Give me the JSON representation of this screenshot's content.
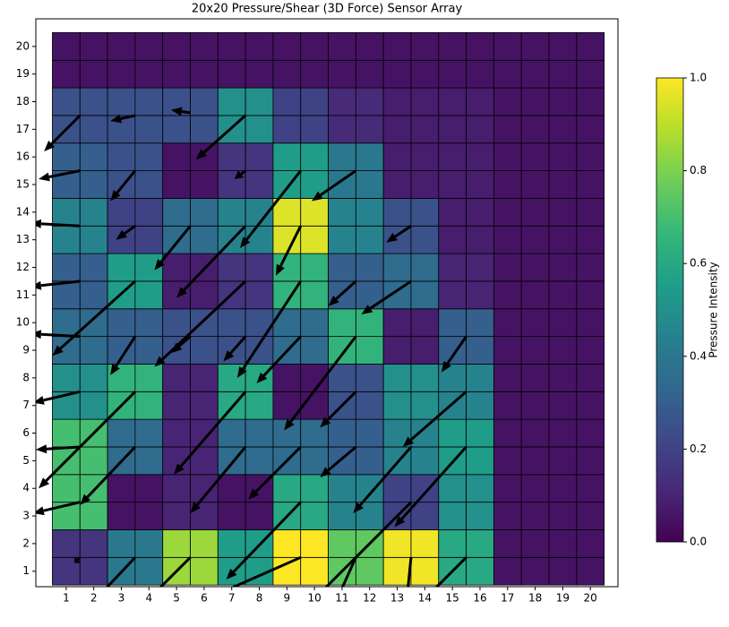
{
  "chart_data": {
    "type": "heatmap-quiver",
    "title": "20x20 Pressure/Shear (3D Force) Sensor Array",
    "colormap": "viridis",
    "xlim": [
      -0.1,
      21.0
    ],
    "ylim": [
      0.44,
      21.0
    ],
    "xticks": [
      1,
      2,
      3,
      4,
      5,
      6,
      7,
      8,
      9,
      10,
      11,
      12,
      13,
      14,
      15,
      16,
      17,
      18,
      19,
      20
    ],
    "yticks": [
      1,
      2,
      3,
      4,
      5,
      6,
      7,
      8,
      9,
      10,
      11,
      12,
      13,
      14,
      15,
      16,
      17,
      18,
      19,
      20
    ],
    "z": [
      [
        0.15,
        0.15,
        0.4,
        0.4,
        0.85,
        0.85,
        0.55,
        0.55,
        1.0,
        1.0,
        0.75,
        0.75,
        0.98,
        0.98,
        0.6,
        0.6,
        0.05,
        0.05,
        0.05,
        0.05
      ],
      [
        0.15,
        0.15,
        0.4,
        0.4,
        0.85,
        0.85,
        0.55,
        0.55,
        1.0,
        1.0,
        0.75,
        0.75,
        0.98,
        0.98,
        0.6,
        0.6,
        0.05,
        0.05,
        0.05,
        0.05
      ],
      [
        0.7,
        0.7,
        0.05,
        0.05,
        0.1,
        0.1,
        0.05,
        0.05,
        0.6,
        0.6,
        0.45,
        0.45,
        0.2,
        0.2,
        0.5,
        0.5,
        0.05,
        0.05,
        0.05,
        0.05
      ],
      [
        0.7,
        0.7,
        0.05,
        0.05,
        0.1,
        0.1,
        0.05,
        0.05,
        0.6,
        0.6,
        0.45,
        0.45,
        0.2,
        0.2,
        0.5,
        0.5,
        0.05,
        0.05,
        0.05,
        0.05
      ],
      [
        0.7,
        0.7,
        0.35,
        0.35,
        0.1,
        0.1,
        0.35,
        0.35,
        0.35,
        0.35,
        0.3,
        0.3,
        0.45,
        0.45,
        0.55,
        0.55,
        0.05,
        0.05,
        0.05,
        0.05
      ],
      [
        0.7,
        0.7,
        0.35,
        0.35,
        0.1,
        0.1,
        0.35,
        0.35,
        0.35,
        0.35,
        0.3,
        0.3,
        0.45,
        0.45,
        0.55,
        0.55,
        0.05,
        0.05,
        0.05,
        0.05
      ],
      [
        0.5,
        0.5,
        0.65,
        0.65,
        0.1,
        0.1,
        0.6,
        0.6,
        0.05,
        0.05,
        0.25,
        0.25,
        0.5,
        0.5,
        0.45,
        0.45,
        0.05,
        0.05,
        0.05,
        0.05
      ],
      [
        0.5,
        0.5,
        0.65,
        0.65,
        0.1,
        0.1,
        0.6,
        0.6,
        0.05,
        0.05,
        0.25,
        0.25,
        0.5,
        0.5,
        0.45,
        0.45,
        0.05,
        0.05,
        0.05,
        0.05
      ],
      [
        0.35,
        0.35,
        0.3,
        0.3,
        0.25,
        0.25,
        0.25,
        0.25,
        0.35,
        0.35,
        0.65,
        0.65,
        0.08,
        0.08,
        0.3,
        0.3,
        0.05,
        0.05,
        0.05,
        0.05
      ],
      [
        0.35,
        0.35,
        0.3,
        0.3,
        0.25,
        0.25,
        0.25,
        0.25,
        0.35,
        0.35,
        0.65,
        0.65,
        0.08,
        0.08,
        0.3,
        0.3,
        0.05,
        0.05,
        0.05,
        0.05
      ],
      [
        0.3,
        0.3,
        0.55,
        0.55,
        0.08,
        0.08,
        0.15,
        0.15,
        0.65,
        0.65,
        0.3,
        0.3,
        0.35,
        0.35,
        0.1,
        0.1,
        0.05,
        0.05,
        0.05,
        0.05
      ],
      [
        0.3,
        0.3,
        0.55,
        0.55,
        0.08,
        0.08,
        0.15,
        0.15,
        0.65,
        0.65,
        0.3,
        0.3,
        0.35,
        0.35,
        0.1,
        0.1,
        0.05,
        0.05,
        0.05,
        0.05
      ],
      [
        0.45,
        0.45,
        0.2,
        0.2,
        0.35,
        0.35,
        0.45,
        0.45,
        0.95,
        0.95,
        0.45,
        0.45,
        0.25,
        0.25,
        0.08,
        0.08,
        0.05,
        0.05,
        0.05,
        0.05
      ],
      [
        0.45,
        0.45,
        0.2,
        0.2,
        0.35,
        0.35,
        0.45,
        0.45,
        0.95,
        0.95,
        0.45,
        0.45,
        0.25,
        0.25,
        0.08,
        0.08,
        0.05,
        0.05,
        0.05,
        0.05
      ],
      [
        0.3,
        0.3,
        0.25,
        0.25,
        0.05,
        0.05,
        0.15,
        0.15,
        0.55,
        0.55,
        0.4,
        0.4,
        0.08,
        0.08,
        0.08,
        0.08,
        0.05,
        0.05,
        0.05,
        0.05
      ],
      [
        0.3,
        0.3,
        0.25,
        0.25,
        0.05,
        0.05,
        0.15,
        0.15,
        0.55,
        0.55,
        0.4,
        0.4,
        0.08,
        0.08,
        0.08,
        0.08,
        0.05,
        0.05,
        0.05,
        0.05
      ],
      [
        0.25,
        0.25,
        0.25,
        0.25,
        0.25,
        0.25,
        0.5,
        0.5,
        0.2,
        0.2,
        0.12,
        0.12,
        0.08,
        0.08,
        0.08,
        0.08,
        0.05,
        0.05,
        0.05,
        0.05
      ],
      [
        0.25,
        0.25,
        0.25,
        0.25,
        0.25,
        0.25,
        0.5,
        0.5,
        0.2,
        0.2,
        0.12,
        0.12,
        0.08,
        0.08,
        0.08,
        0.08,
        0.05,
        0.05,
        0.05,
        0.05
      ],
      [
        0.05,
        0.05,
        0.05,
        0.05,
        0.05,
        0.05,
        0.05,
        0.05,
        0.05,
        0.05,
        0.05,
        0.05,
        0.05,
        0.05,
        0.05,
        0.05,
        0.05,
        0.05,
        0.05,
        0.05
      ],
      [
        0.05,
        0.05,
        0.05,
        0.05,
        0.05,
        0.05,
        0.05,
        0.05,
        0.05,
        0.05,
        0.05,
        0.05,
        0.05,
        0.05,
        0.05,
        0.05,
        0.05,
        0.05,
        0.05,
        0.05
      ]
    ],
    "arrows": [
      {
        "x": 1.5,
        "y": 17.5,
        "u": -1.3,
        "v": -1.3
      },
      {
        "x": 3.5,
        "y": 17.5,
        "u": -0.9,
        "v": -0.2
      },
      {
        "x": 5.5,
        "y": 17.6,
        "u": -0.7,
        "v": 0.1
      },
      {
        "x": 7.5,
        "y": 17.5,
        "u": -1.8,
        "v": -1.6
      },
      {
        "x": 1.5,
        "y": 15.5,
        "u": -1.5,
        "v": -0.3
      },
      {
        "x": 3.5,
        "y": 15.5,
        "u": -0.9,
        "v": -1.1
      },
      {
        "x": 7.5,
        "y": 15.5,
        "u": -0.4,
        "v": -0.3
      },
      {
        "x": 9.5,
        "y": 15.5,
        "u": -2.2,
        "v": -2.8
      },
      {
        "x": 11.5,
        "y": 15.5,
        "u": -1.6,
        "v": -1.1
      },
      {
        "x": 1.5,
        "y": 13.5,
        "u": -1.8,
        "v": 0.1
      },
      {
        "x": 3.5,
        "y": 13.5,
        "u": -0.7,
        "v": -0.5
      },
      {
        "x": 5.5,
        "y": 13.5,
        "u": -1.3,
        "v": -1.6
      },
      {
        "x": 7.5,
        "y": 13.5,
        "u": -2.5,
        "v": -2.6
      },
      {
        "x": 9.5,
        "y": 13.5,
        "u": -0.9,
        "v": -1.8
      },
      {
        "x": 13.5,
        "y": 13.5,
        "u": -0.9,
        "v": -0.6
      },
      {
        "x": 1.5,
        "y": 11.5,
        "u": -1.8,
        "v": -0.2
      },
      {
        "x": 3.5,
        "y": 11.5,
        "u": -3.0,
        "v": -2.7
      },
      {
        "x": 7.5,
        "y": 11.5,
        "u": -3.3,
        "v": -3.1
      },
      {
        "x": 9.5,
        "y": 11.5,
        "u": -2.3,
        "v": -3.5
      },
      {
        "x": 11.5,
        "y": 11.5,
        "u": -1.0,
        "v": -0.9
      },
      {
        "x": 13.5,
        "y": 11.5,
        "u": -1.8,
        "v": -1.2
      },
      {
        "x": 1.5,
        "y": 9.5,
        "u": -1.8,
        "v": 0.1
      },
      {
        "x": 3.5,
        "y": 9.5,
        "u": -0.9,
        "v": -1.4
      },
      {
        "x": 5.5,
        "y": 9.5,
        "u": -0.7,
        "v": -0.6
      },
      {
        "x": 7.5,
        "y": 9.5,
        "u": -0.8,
        "v": -0.9
      },
      {
        "x": 9.5,
        "y": 9.5,
        "u": -1.6,
        "v": -1.7
      },
      {
        "x": 11.5,
        "y": 9.5,
        "u": -2.6,
        "v": -3.4
      },
      {
        "x": 15.5,
        "y": 9.5,
        "u": -0.9,
        "v": -1.3
      },
      {
        "x": 1.5,
        "y": 7.5,
        "u": -1.7,
        "v": -0.4
      },
      {
        "x": 3.5,
        "y": 7.5,
        "u": -3.5,
        "v": -3.5
      },
      {
        "x": 7.5,
        "y": 7.5,
        "u": -2.6,
        "v": -3.0
      },
      {
        "x": 11.5,
        "y": 7.5,
        "u": -1.3,
        "v": -1.3
      },
      {
        "x": 15.5,
        "y": 7.5,
        "u": -2.3,
        "v": -2.0
      },
      {
        "x": 1.5,
        "y": 5.5,
        "u": -1.6,
        "v": -0.1
      },
      {
        "x": 3.5,
        "y": 5.5,
        "u": -2.0,
        "v": -2.1
      },
      {
        "x": 7.5,
        "y": 5.5,
        "u": -2.0,
        "v": -2.4
      },
      {
        "x": 9.5,
        "y": 5.5,
        "u": -1.9,
        "v": -1.9
      },
      {
        "x": 11.5,
        "y": 5.5,
        "u": -1.3,
        "v": -1.1
      },
      {
        "x": 13.5,
        "y": 5.5,
        "u": -2.1,
        "v": -2.4
      },
      {
        "x": 15.5,
        "y": 5.5,
        "u": -2.6,
        "v": -2.9
      },
      {
        "x": 1.5,
        "y": 3.5,
        "u": -1.7,
        "v": -0.4
      },
      {
        "x": 9.5,
        "y": 3.5,
        "u": -2.7,
        "v": -2.8
      },
      {
        "x": 13.5,
        "y": 3.5,
        "u": -3.8,
        "v": -3.8
      },
      {
        "x": 1.5,
        "y": 1.5,
        "u": -0.2,
        "v": -0.2
      },
      {
        "x": 3.5,
        "y": 1.5,
        "u": -1.7,
        "v": -1.8
      },
      {
        "x": 5.5,
        "y": 1.5,
        "u": -2.0,
        "v": -2.0
      },
      {
        "x": 9.5,
        "y": 1.5,
        "u": -3.4,
        "v": -1.5
      },
      {
        "x": 11.5,
        "y": 1.5,
        "u": -0.9,
        "v": -2.0
      },
      {
        "x": 13.5,
        "y": 1.5,
        "u": -0.2,
        "v": -2.0
      },
      {
        "x": 15.5,
        "y": 1.5,
        "u": -1.9,
        "v": -1.9
      }
    ],
    "colorbar": {
      "label": "Pressure Intensity",
      "lim": [
        0,
        1
      ],
      "ticks": [
        {
          "value": 0,
          "label": "0.0"
        },
        {
          "value": 0.2,
          "label": "0.2"
        },
        {
          "value": 0.4,
          "label": "0.4"
        },
        {
          "value": 0.6,
          "label": "0.6"
        },
        {
          "value": 0.8,
          "label": "0.8"
        },
        {
          "value": 1,
          "label": "1.0"
        }
      ]
    }
  }
}
